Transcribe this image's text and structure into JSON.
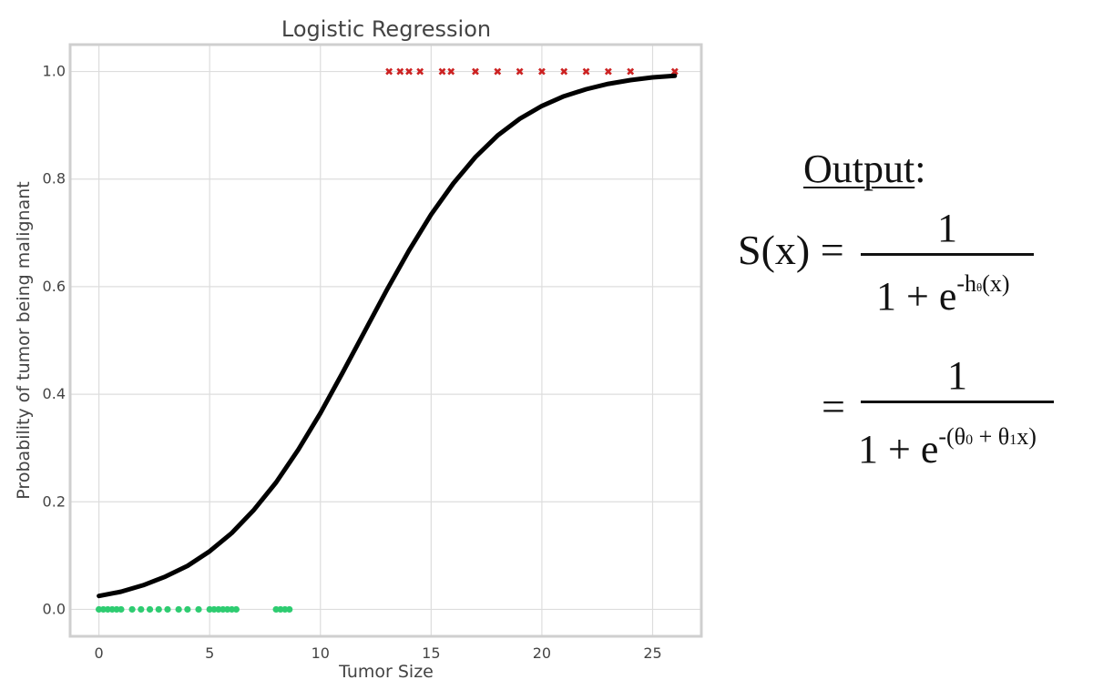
{
  "chart_data": {
    "type": "scatter",
    "title": "Logistic Regression",
    "xlabel": "Tumor Size",
    "ylabel": "Probability of tumor being malignant",
    "xlim": [
      -1.3,
      27.2
    ],
    "ylim": [
      -0.05,
      1.05
    ],
    "xticks": [
      0,
      5,
      10,
      15,
      20,
      25
    ],
    "yticks": [
      0.0,
      0.2,
      0.4,
      0.6,
      0.8,
      1.0
    ],
    "xtick_labels": [
      "0",
      "5",
      "10",
      "15",
      "20",
      "25"
    ],
    "ytick_labels": [
      "0.0",
      "0.2",
      "0.4",
      "0.6",
      "0.8",
      "1.0"
    ],
    "grid": true,
    "series": [
      {
        "kind": "points",
        "marker": "dot",
        "color": "#2ecc71",
        "x": [
          0.0,
          0.2,
          0.4,
          0.6,
          0.8,
          1.0,
          1.5,
          1.9,
          2.3,
          2.7,
          3.1,
          3.6,
          4.0,
          4.5,
          5.0,
          5.2,
          5.4,
          5.6,
          5.8,
          6.0,
          6.2,
          8.0,
          8.2,
          8.4,
          8.6
        ],
        "y": [
          0,
          0,
          0,
          0,
          0,
          0,
          0,
          0,
          0,
          0,
          0,
          0,
          0,
          0,
          0,
          0,
          0,
          0,
          0,
          0,
          0,
          0,
          0,
          0,
          0
        ]
      },
      {
        "kind": "points",
        "marker": "x",
        "color": "#cc2222",
        "x": [
          13.1,
          13.6,
          14.0,
          14.5,
          15.5,
          15.9,
          17.0,
          18.0,
          19.0,
          20.0,
          21.0,
          22.0,
          23.0,
          24.0,
          26.0
        ],
        "y": [
          1,
          1,
          1,
          1,
          1,
          1,
          1,
          1,
          1,
          1,
          1,
          1,
          1,
          1,
          1
        ]
      },
      {
        "kind": "curve",
        "color": "#000000",
        "x": [
          0,
          1,
          2,
          3,
          4,
          5,
          6,
          7,
          8,
          9,
          10,
          11,
          12,
          13,
          14,
          15,
          16,
          17,
          18,
          19,
          20,
          21,
          22,
          23,
          24,
          25,
          26
        ],
        "y": [
          0.025,
          0.033,
          0.045,
          0.061,
          0.081,
          0.108,
          0.142,
          0.185,
          0.236,
          0.297,
          0.365,
          0.44,
          0.517,
          0.594,
          0.667,
          0.734,
          0.792,
          0.841,
          0.881,
          0.912,
          0.936,
          0.954,
          0.967,
          0.977,
          0.984,
          0.989,
          0.992
        ]
      }
    ]
  },
  "formula": {
    "heading": "Output",
    "heading_colon": ":",
    "lhs": "S(x) =",
    "numerator": "1",
    "den1_base": "1 + e",
    "den1_exp_a": "-h",
    "den1_exp_theta": "θ",
    "den1_exp_b": "(x)",
    "eq2": "=",
    "numerator2": "1",
    "den2_base": "1 + e",
    "den2_exp_a": "-(θ",
    "den2_exp_sub0": "0",
    "den2_exp_b": " + θ",
    "den2_exp_sub1": "1",
    "den2_exp_c": "x)"
  }
}
